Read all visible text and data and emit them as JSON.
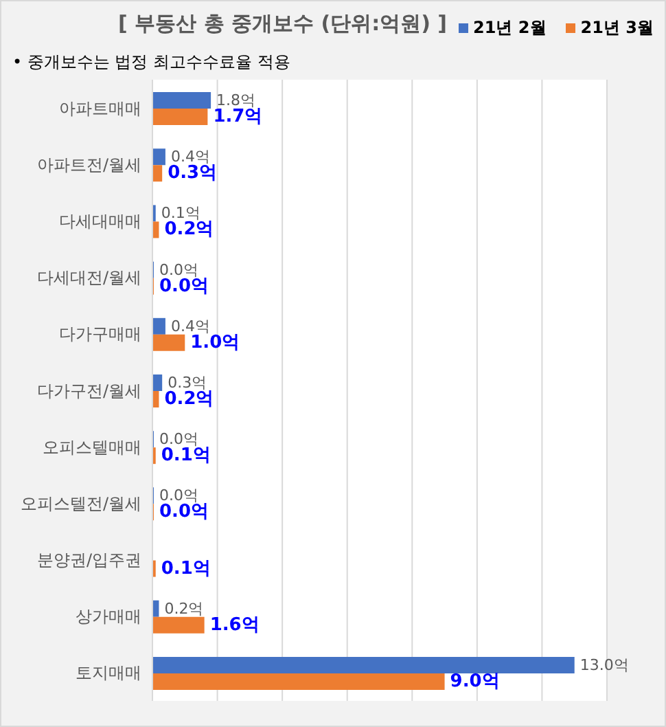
{
  "chart_data": {
    "type": "bar",
    "orientation": "horizontal",
    "title": "[ 부동산 총 중개보수 (단위:억원) ]",
    "annotations": [
      "• 중개보수는 법정 최고수수료율 적용"
    ],
    "categories": [
      "아파트매매",
      "아파트전/월세",
      "다세대매매",
      "다세대전/월세",
      "다가구매매",
      "다가구전/월세",
      "오피스텔매매",
      "오피스텔전/월세",
      "분양권/입주권",
      "상가매매",
      "토지매매"
    ],
    "series": [
      {
        "name": "21년 2월",
        "color": "#4472c4",
        "values": [
          1.8,
          0.4,
          0.1,
          0.0,
          0.4,
          0.3,
          0.0,
          0.0,
          null,
          0.2,
          13.0
        ],
        "value_labels": [
          "1.8억",
          "0.4억",
          "0.1억",
          "0.0억",
          "0.4억",
          "0.3억",
          "0.0억",
          "0.0억",
          null,
          "0.2억",
          "13.0억"
        ]
      },
      {
        "name": "21년 3월",
        "color": "#ed7d31",
        "values": [
          1.7,
          0.3,
          0.2,
          0.0,
          1.0,
          0.2,
          0.1,
          0.0,
          0.1,
          1.6,
          9.0
        ],
        "value_labels": [
          "1.7억",
          "0.3억",
          "0.2억",
          "0.0억",
          "1.0억",
          "0.2억",
          "0.1억",
          "0.0억",
          "0.1억",
          "1.6억",
          "9.0억"
        ]
      }
    ],
    "xlim": [
      0,
      14
    ],
    "xticks": [
      {
        "value": 0,
        "label": null
      },
      {
        "value": 2,
        "label": null
      },
      {
        "value": 4,
        "label": null
      },
      {
        "value": 6,
        "label": null
      },
      {
        "value": 8,
        "label": null
      },
      {
        "value": 10,
        "label": null
      },
      {
        "value": 12,
        "label": null
      },
      {
        "value": 14,
        "label": null
      }
    ],
    "grid": "x",
    "legend": "top right",
    "tick_labels": "y"
  }
}
